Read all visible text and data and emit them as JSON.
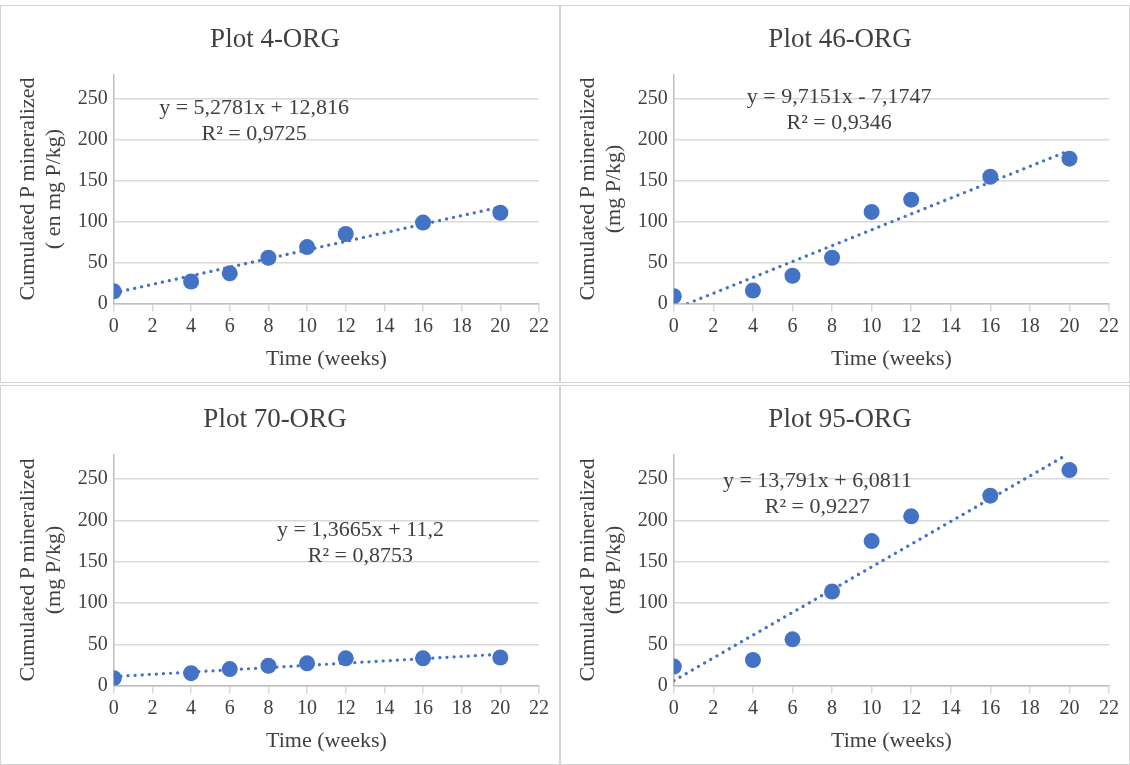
{
  "chart_data": [
    {
      "type": "scatter",
      "title": "Plot 4-ORG",
      "xlabel": "Time (weeks)",
      "ylabel": "Cumulated P mineralized\n( en mg P/kg)",
      "xlim": [
        0,
        22
      ],
      "xticks": [
        0,
        2,
        4,
        6,
        8,
        10,
        12,
        14,
        16,
        18,
        20,
        22
      ],
      "ylim": [
        0,
        280
      ],
      "yticks": [
        0,
        50,
        100,
        150,
        200,
        250
      ],
      "grid": "y",
      "annotations": [
        "y = 5,2781x + 12,816",
        "R² = 0,9725"
      ],
      "series": [
        {
          "type": "scatter",
          "color": "#4472c4",
          "marker": "circle",
          "x": [
            0,
            4,
            6,
            8,
            10,
            12,
            16,
            20
          ],
          "values": [
            15,
            27,
            37,
            56,
            69,
            85,
            99,
            111
          ]
        },
        {
          "type": "line",
          "color": "#4472c4",
          "marker": "none",
          "line_style": "dotted",
          "x": [
            0,
            20
          ],
          "values": [
            13,
            118
          ]
        }
      ]
    },
    {
      "type": "scatter",
      "title": "Plot 46-ORG",
      "xlabel": "Time (weeks)",
      "ylabel": "Cumulated P mineralized\n(mg P/kg)",
      "xlim": [
        0,
        22
      ],
      "xticks": [
        0,
        2,
        4,
        6,
        8,
        10,
        12,
        14,
        16,
        18,
        20,
        22
      ],
      "ylim": [
        0,
        280
      ],
      "yticks": [
        0,
        50,
        100,
        150,
        200,
        250
      ],
      "grid": "y",
      "annotations": [
        "y = 9,7151x - 7,1747",
        "R² = 0,9346"
      ],
      "series": [
        {
          "type": "scatter",
          "color": "#4472c4",
          "marker": "circle",
          "x": [
            0,
            4,
            6,
            8,
            10,
            12,
            16,
            20
          ],
          "values": [
            9,
            16,
            34,
            56,
            112,
            127,
            155,
            177
          ]
        },
        {
          "type": "line",
          "color": "#4472c4",
          "marker": "none",
          "line_style": "dotted",
          "x": [
            0.7,
            20
          ],
          "values": [
            0,
            187
          ]
        }
      ]
    },
    {
      "type": "scatter",
      "title": "Plot 70-ORG",
      "xlabel": "Time (weeks)",
      "ylabel": "Cumulated P mineralized\n(mg P/kg)",
      "xlim": [
        0,
        22
      ],
      "xticks": [
        0,
        2,
        4,
        6,
        8,
        10,
        12,
        14,
        16,
        18,
        20,
        22
      ],
      "ylim": [
        0,
        280
      ],
      "yticks": [
        0,
        50,
        100,
        150,
        200,
        250
      ],
      "grid": "y",
      "annotations": [
        "y = 1,3665x + 11,2",
        "R² = 0,8753"
      ],
      "series": [
        {
          "type": "scatter",
          "color": "#4472c4",
          "marker": "circle",
          "x": [
            0,
            4,
            6,
            8,
            10,
            12,
            16,
            20
          ],
          "values": [
            9,
            15,
            20,
            24,
            27,
            33,
            33,
            34
          ]
        },
        {
          "type": "line",
          "color": "#4472c4",
          "marker": "none",
          "line_style": "dotted",
          "x": [
            0,
            20
          ],
          "values": [
            11,
            38
          ]
        }
      ]
    },
    {
      "type": "scatter",
      "title": "Plot 95-ORG",
      "xlabel": "Time (weeks)",
      "ylabel": "Cumulated P mineralized\n(mg P/kg)",
      "xlim": [
        0,
        22
      ],
      "xticks": [
        0,
        2,
        4,
        6,
        8,
        10,
        12,
        14,
        16,
        18,
        20,
        22
      ],
      "ylim": [
        0,
        280
      ],
      "yticks": [
        0,
        50,
        100,
        150,
        200,
        250
      ],
      "grid": "y",
      "annotations": [
        "y = 13,791x + 6,0811",
        "R² = 0,9227"
      ],
      "series": [
        {
          "type": "scatter",
          "color": "#4472c4",
          "marker": "circle",
          "x": [
            0,
            4,
            6,
            8,
            10,
            12,
            16,
            20
          ],
          "values": [
            23,
            31,
            56,
            114,
            175,
            205,
            230,
            261
          ]
        },
        {
          "type": "line",
          "color": "#4472c4",
          "marker": "none",
          "line_style": "dotted",
          "x": [
            0,
            19.9
          ],
          "values": [
            6,
            280
          ]
        }
      ]
    }
  ]
}
